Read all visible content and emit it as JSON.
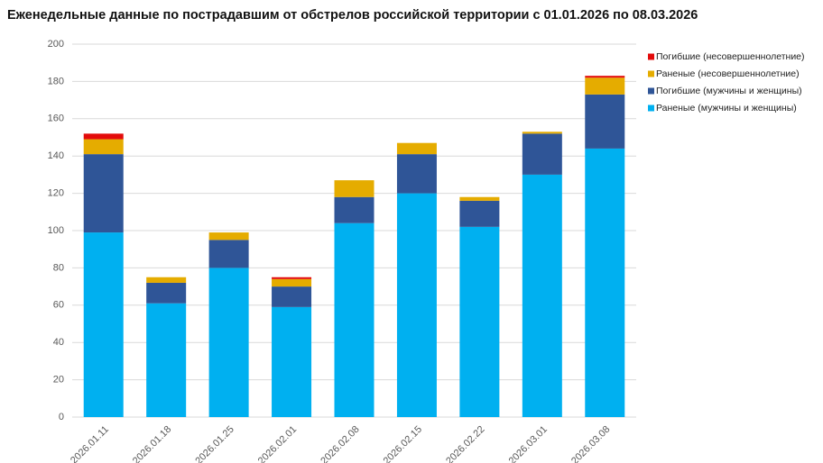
{
  "chart_data": {
    "type": "stacked_bar",
    "title": "Еженедельные данные по пострадавшим от обстрелов российской территории с 01.01.2026 по 08.03.2026",
    "categories": [
      "2026.01.11",
      "2026.01.18",
      "2026.01.25",
      "2026.02.01",
      "2026.02.08",
      "2026.02.15",
      "2026.02.22",
      "2026.03.01",
      "2026.03.08"
    ],
    "series": [
      {
        "name": "Раненые (мужчины и женщины)",
        "color": "#00b0f0",
        "values": [
          99,
          61,
          80,
          59,
          104,
          120,
          102,
          130,
          144
        ]
      },
      {
        "name": "Погибшие (мужчины и женщины)",
        "color": "#2f5597",
        "values": [
          42,
          11,
          15,
          11,
          14,
          21,
          14,
          22,
          29
        ]
      },
      {
        "name": "Раненые (несовершеннолетние)",
        "color": "#e5ac00",
        "values": [
          8,
          3,
          4,
          4,
          9,
          6,
          2,
          1,
          9
        ]
      },
      {
        "name": "Погибшие (несовершеннолетние)",
        "color": "#e30b0b",
        "values": [
          3,
          0,
          0,
          1,
          0,
          0,
          0,
          0,
          1
        ]
      }
    ],
    "ylim": [
      0,
      200
    ],
    "yticks": [
      0,
      20,
      40,
      60,
      80,
      100,
      120,
      140,
      160,
      180,
      200
    ],
    "grid": true,
    "legend": "right"
  }
}
